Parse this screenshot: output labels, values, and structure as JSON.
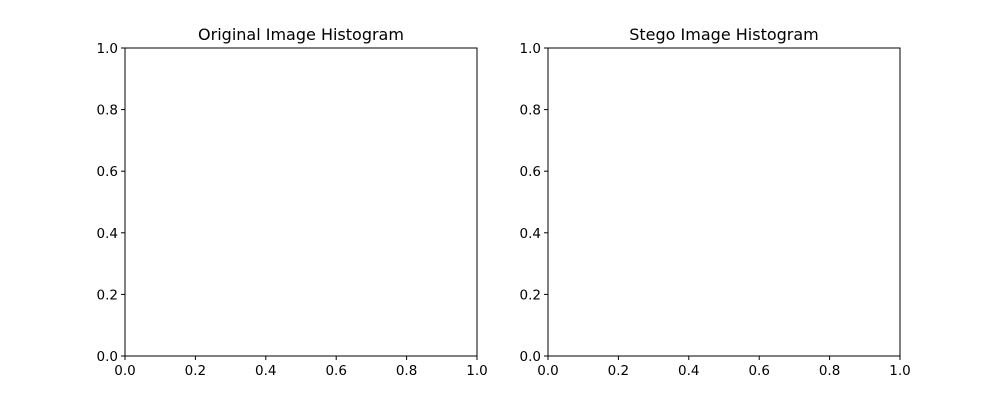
{
  "chart_data": [
    {
      "type": "bar",
      "title": "Original Image Histogram",
      "xlabel": "",
      "ylabel": "",
      "xlim": [
        0,
        1
      ],
      "ylim": [
        0,
        1
      ],
      "xticks": [
        "0.0",
        "0.2",
        "0.4",
        "0.6",
        "0.8",
        "1.0"
      ],
      "yticks": [
        "0.0",
        "0.2",
        "0.4",
        "0.6",
        "0.8",
        "1.0"
      ],
      "grid": false,
      "series": []
    },
    {
      "type": "bar",
      "title": "Stego Image Histogram",
      "xlabel": "",
      "ylabel": "",
      "xlim": [
        0,
        1
      ],
      "ylim": [
        0,
        1
      ],
      "xticks": [
        "0.0",
        "0.2",
        "0.4",
        "0.6",
        "0.8",
        "1.0"
      ],
      "yticks": [
        "0.0",
        "0.2",
        "0.4",
        "0.6",
        "0.8",
        "1.0"
      ],
      "grid": false,
      "series": []
    }
  ],
  "colors": {
    "axes": "#000000",
    "background": "#ffffff"
  }
}
